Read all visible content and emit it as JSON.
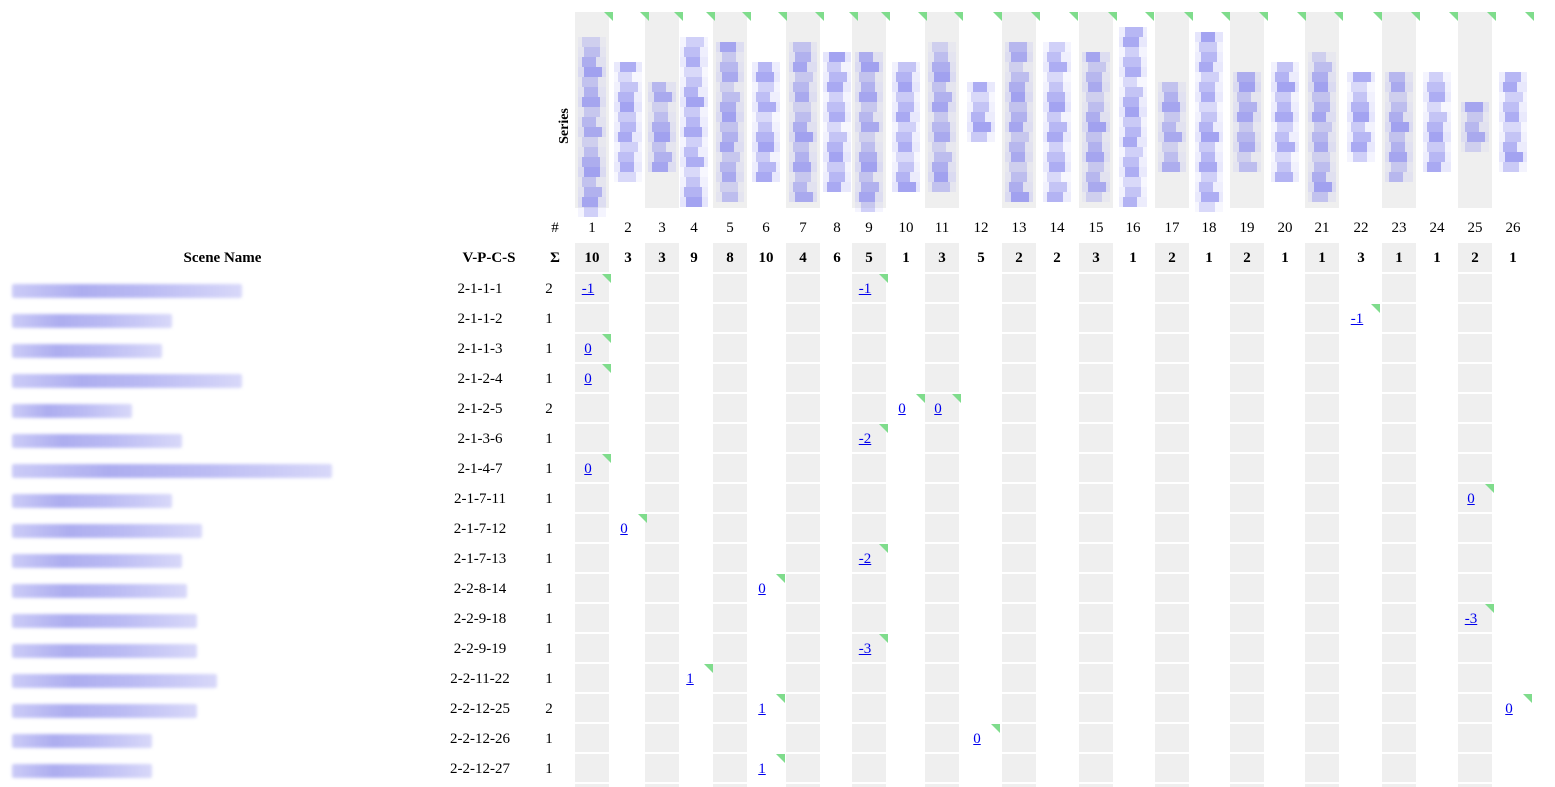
{
  "header": {
    "scene_name_label": "Scene Name",
    "vpcs_label": "V-P-C-S",
    "hash_label": "#",
    "sigma_label": "Σ",
    "series_label": "Series"
  },
  "colors": {
    "stripe": "#efefef",
    "thumb_blue": "#7b7bea",
    "corner_green": "#7fdc8c",
    "link": "#0000ee"
  },
  "columns": [
    {
      "num": "1",
      "total": "10"
    },
    {
      "num": "2",
      "total": "3"
    },
    {
      "num": "3",
      "total": "3"
    },
    {
      "num": "4",
      "total": "9"
    },
    {
      "num": "5",
      "total": "8"
    },
    {
      "num": "6",
      "total": "10"
    },
    {
      "num": "7",
      "total": "4"
    },
    {
      "num": "8",
      "total": "6"
    },
    {
      "num": "9",
      "total": "5"
    },
    {
      "num": "10",
      "total": "1"
    },
    {
      "num": "11",
      "total": "3"
    },
    {
      "num": "12",
      "total": "5"
    },
    {
      "num": "13",
      "total": "2"
    },
    {
      "num": "14",
      "total": "2"
    },
    {
      "num": "15",
      "total": "3"
    },
    {
      "num": "16",
      "total": "1"
    },
    {
      "num": "17",
      "total": "2"
    },
    {
      "num": "18",
      "total": "1"
    },
    {
      "num": "19",
      "total": "2"
    },
    {
      "num": "20",
      "total": "1"
    },
    {
      "num": "21",
      "total": "1"
    },
    {
      "num": "22",
      "total": "3"
    },
    {
      "num": "23",
      "total": "1"
    },
    {
      "num": "24",
      "total": "1"
    },
    {
      "num": "25",
      "total": "2"
    },
    {
      "num": "26",
      "total": "1"
    }
  ],
  "rows": [
    {
      "vpcs": "2-1-1-1",
      "sum": "2",
      "cells": [
        {
          "col": 1,
          "value": "-1"
        },
        {
          "col": 9,
          "value": "-1"
        }
      ]
    },
    {
      "vpcs": "2-1-1-2",
      "sum": "1",
      "cells": [
        {
          "col": 22,
          "value": "-1"
        }
      ]
    },
    {
      "vpcs": "2-1-1-3",
      "sum": "1",
      "cells": [
        {
          "col": 1,
          "value": "0"
        }
      ]
    },
    {
      "vpcs": "2-1-2-4",
      "sum": "1",
      "cells": [
        {
          "col": 1,
          "value": "0"
        }
      ]
    },
    {
      "vpcs": "2-1-2-5",
      "sum": "2",
      "cells": [
        {
          "col": 10,
          "value": "0"
        },
        {
          "col": 11,
          "value": "0"
        }
      ]
    },
    {
      "vpcs": "2-1-3-6",
      "sum": "1",
      "cells": [
        {
          "col": 9,
          "value": "-2"
        }
      ]
    },
    {
      "vpcs": "2-1-4-7",
      "sum": "1",
      "cells": [
        {
          "col": 1,
          "value": "0"
        }
      ]
    },
    {
      "vpcs": "2-1-7-11",
      "sum": "1",
      "cells": [
        {
          "col": 25,
          "value": "0"
        }
      ]
    },
    {
      "vpcs": "2-1-7-12",
      "sum": "1",
      "cells": [
        {
          "col": 2,
          "value": "0"
        }
      ]
    },
    {
      "vpcs": "2-1-7-13",
      "sum": "1",
      "cells": [
        {
          "col": 9,
          "value": "-2"
        }
      ]
    },
    {
      "vpcs": "2-2-8-14",
      "sum": "1",
      "cells": [
        {
          "col": 6,
          "value": "0"
        }
      ]
    },
    {
      "vpcs": "2-2-9-18",
      "sum": "1",
      "cells": [
        {
          "col": 25,
          "value": "-3"
        }
      ]
    },
    {
      "vpcs": "2-2-9-19",
      "sum": "1",
      "cells": [
        {
          "col": 9,
          "value": "-3"
        }
      ]
    },
    {
      "vpcs": "2-2-11-22",
      "sum": "1",
      "cells": [
        {
          "col": 4,
          "value": "1"
        }
      ]
    },
    {
      "vpcs": "2-2-12-25",
      "sum": "2",
      "cells": [
        {
          "col": 6,
          "value": "1"
        },
        {
          "col": 26,
          "value": "0"
        }
      ]
    },
    {
      "vpcs": "2-2-12-26",
      "sum": "1",
      "cells": [
        {
          "col": 12,
          "value": "0"
        }
      ]
    },
    {
      "vpcs": "2-2-12-27",
      "sum": "1",
      "cells": [
        {
          "col": 6,
          "value": "1"
        }
      ]
    }
  ]
}
